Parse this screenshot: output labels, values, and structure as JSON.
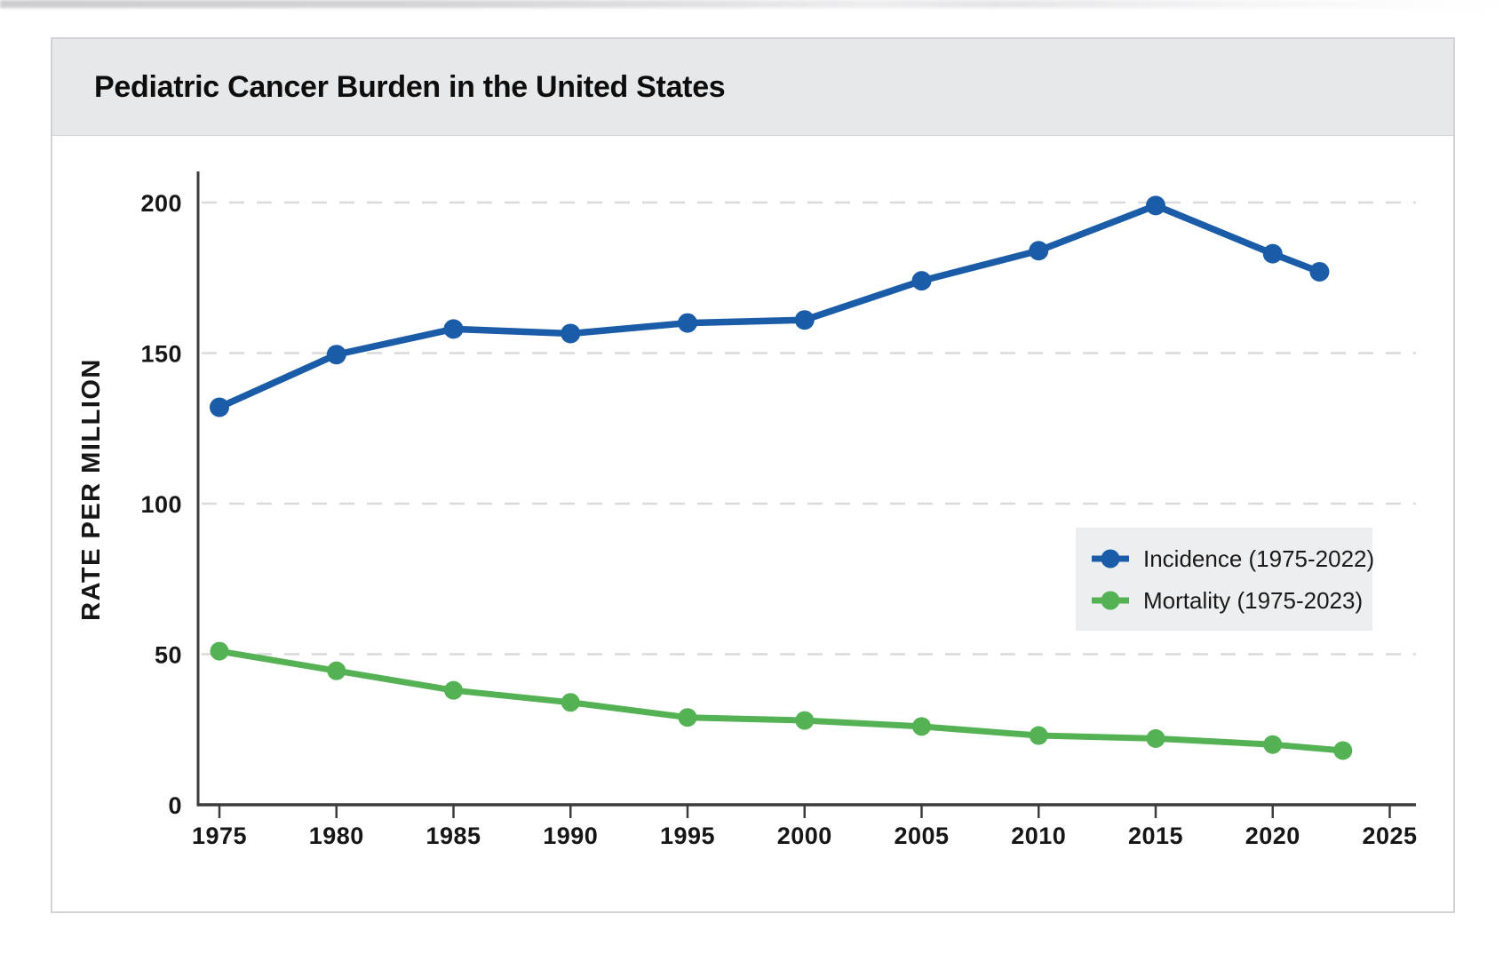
{
  "card": {
    "title": "Pediatric Cancer Burden in the United States"
  },
  "chart_data": {
    "type": "line",
    "title": "Pediatric Cancer Burden in the United States",
    "xlabel": "",
    "ylabel": "RATE PER MILLION",
    "xlim": [
      1972.8,
      2026.5
    ],
    "ylim": [
      0,
      214
    ],
    "x_ticks": [
      1975,
      1980,
      1985,
      1990,
      1995,
      2000,
      2005,
      2010,
      2015,
      2020,
      2025
    ],
    "y_ticks": [
      0,
      50,
      100,
      150,
      200
    ],
    "grid": "horizontal dashed",
    "legend": {
      "position": "middle-right",
      "background": "#edeeef",
      "entries": [
        "Incidence (1975-2022)",
        "Mortality (1975-2023)"
      ]
    },
    "series": [
      {
        "name": "Incidence (1975-2022)",
        "key": "incidence",
        "color": "#1a5ca8",
        "x": [
          1975,
          1980,
          1985,
          1990,
          1995,
          2000,
          2005,
          2010,
          2015,
          2020,
          2022
        ],
        "y": [
          132,
          149.5,
          158,
          156.5,
          160,
          161,
          174,
          184,
          199,
          183,
          177
        ]
      },
      {
        "name": "Mortality (1975-2023)",
        "key": "mortality",
        "color": "#54b254",
        "x": [
          1975,
          1980,
          1985,
          1990,
          1995,
          2000,
          2005,
          2010,
          2015,
          2020,
          2023
        ],
        "y": [
          51,
          44.5,
          38,
          34,
          29,
          28,
          26,
          23,
          22,
          20,
          18
        ]
      }
    ]
  },
  "colors": {
    "header_bg": "#e7e8e9",
    "card_border": "#d2d2d5",
    "axis": "#3c3c3e",
    "gridline": "#dadada",
    "tick_label": "#161616",
    "legend_bg": "#edeeef",
    "incidence": "#1a5ca8",
    "mortality": "#54b254"
  }
}
